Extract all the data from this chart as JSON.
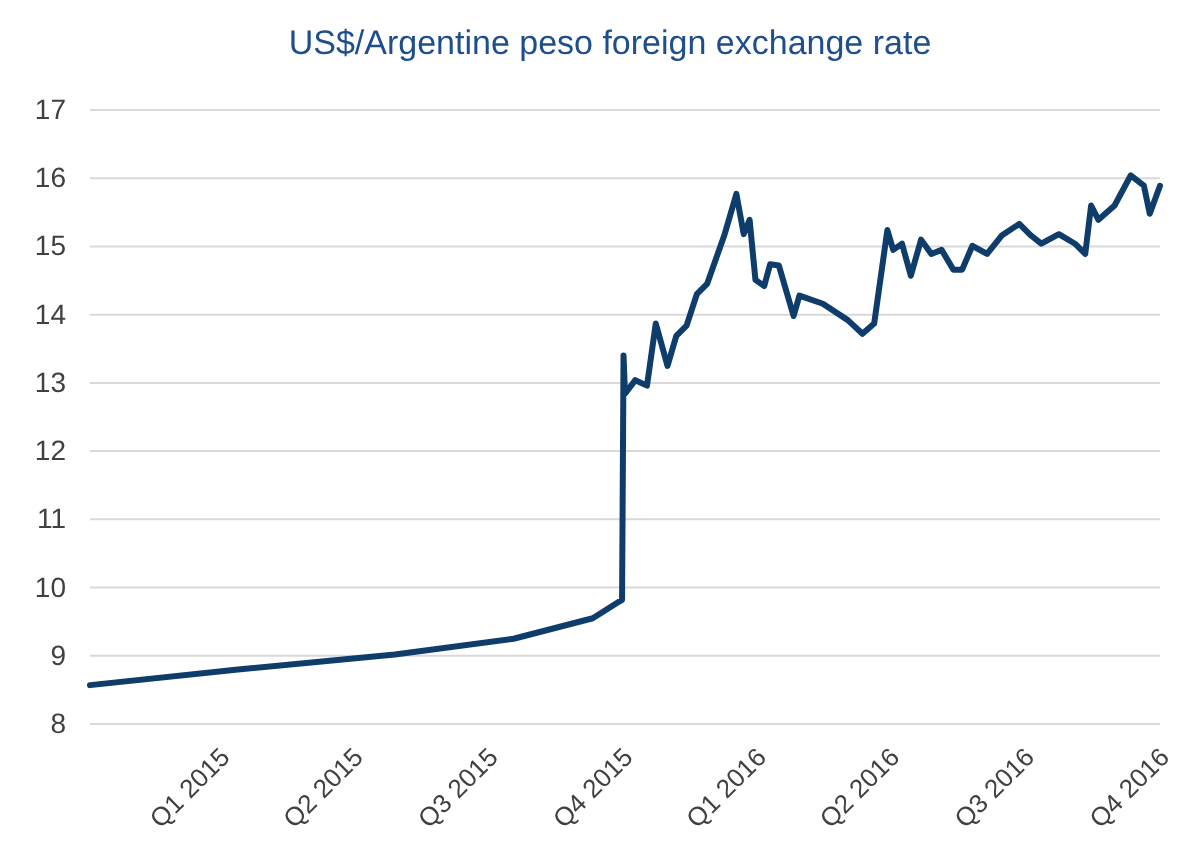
{
  "chart_data": {
    "type": "line",
    "title": "US$/Argentine peso foreign exchange rate",
    "xlim": [
      "2015-01-01",
      "2016-12-31"
    ],
    "xticks": [
      {
        "value": "2015-03-31",
        "label": "Q1 2015"
      },
      {
        "value": "2015-06-30",
        "label": "Q2 2015"
      },
      {
        "value": "2015-09-30",
        "label": "Q3 2015"
      },
      {
        "value": "2015-12-31",
        "label": "Q4 2015"
      },
      {
        "value": "2016-03-31",
        "label": "Q1 2016"
      },
      {
        "value": "2016-06-30",
        "label": "Q2 2016"
      },
      {
        "value": "2016-09-30",
        "label": "Q3 2016"
      },
      {
        "value": "2016-12-31",
        "label": "Q4 2016"
      }
    ],
    "ylim": [
      8,
      17
    ],
    "yticks": [
      8,
      9,
      10,
      11,
      12,
      13,
      14,
      15,
      16,
      17
    ],
    "grid": "y",
    "series": [
      {
        "color": "#0f3d6b",
        "x": [
          "2015-01-01",
          "2015-04-12",
          "2015-07-28",
          "2015-10-17",
          "2015-12-10",
          "2015-12-27",
          "2015-12-30",
          "2015-12-31",
          "2016-01-01",
          "2016-01-08",
          "2016-01-16",
          "2016-01-22",
          "2016-01-30",
          "2016-02-05",
          "2016-02-12",
          "2016-02-19",
          "2016-02-26",
          "2016-03-09",
          "2016-03-17",
          "2016-03-22",
          "2016-03-26",
          "2016-03-30",
          "2016-04-05",
          "2016-04-09",
          "2016-04-15",
          "2016-04-25",
          "2016-04-29",
          "2016-05-15",
          "2016-06-01",
          "2016-06-11",
          "2016-06-19",
          "2016-06-28",
          "2016-07-02",
          "2016-07-08",
          "2016-07-14",
          "2016-07-21",
          "2016-07-28",
          "2016-08-04",
          "2016-08-12",
          "2016-08-18",
          "2016-08-25",
          "2016-09-04",
          "2016-09-14",
          "2016-09-26",
          "2016-10-04",
          "2016-10-11",
          "2016-10-23",
          "2016-11-03",
          "2016-11-10",
          "2016-11-14",
          "2016-11-19",
          "2016-11-30",
          "2016-12-11",
          "2016-12-20",
          "2016-12-24",
          "2016-12-31"
        ],
        "values": [
          8.57,
          8.8,
          9.02,
          9.25,
          9.55,
          9.78,
          9.82,
          13.4,
          12.84,
          13.04,
          12.96,
          13.87,
          13.25,
          13.69,
          13.84,
          14.3,
          14.45,
          15.18,
          15.77,
          15.18,
          15.39,
          14.51,
          14.42,
          14.74,
          14.72,
          13.98,
          14.28,
          14.16,
          13.92,
          13.72,
          13.87,
          15.24,
          14.95,
          15.04,
          14.57,
          15.1,
          14.89,
          14.95,
          14.66,
          14.66,
          15.01,
          14.89,
          15.16,
          15.33,
          15.16,
          15.04,
          15.18,
          15.04,
          14.89,
          15.6,
          15.39,
          15.6,
          16.04,
          15.89,
          15.48,
          15.89
        ]
      }
    ]
  }
}
